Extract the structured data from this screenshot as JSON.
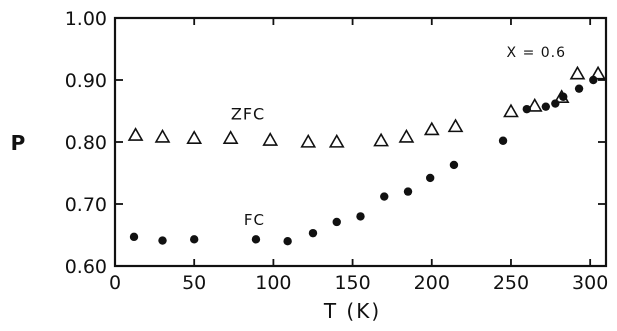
{
  "chart_data": {
    "type": "scatter",
    "title": "",
    "xlabel": "T (K)",
    "ylabel": "P",
    "xlim": [
      0,
      310
    ],
    "ylim": [
      0.6,
      1.0
    ],
    "x_ticks": [
      0,
      50,
      100,
      150,
      200,
      250,
      300
    ],
    "y_ticks": [
      0.6,
      0.7,
      0.8,
      0.9,
      1.0
    ],
    "x_tick_labels": [
      "0",
      "50",
      "100",
      "150",
      "200",
      "250",
      "300"
    ],
    "y_tick_labels": [
      "0.60",
      "0.70",
      "0.80",
      "0.90",
      "1.00"
    ],
    "grid": false,
    "annotations": [
      {
        "text": "X = 0.6",
        "x": 266,
        "y": 0.937
      },
      {
        "text": "ZFC",
        "x": 84,
        "y": 0.836
      },
      {
        "text": "FC",
        "x": 88,
        "y": 0.666
      }
    ],
    "series": [
      {
        "name": "ZFC",
        "marker": "open-triangle",
        "color": "#111111",
        "x": [
          13,
          30,
          50,
          73,
          98,
          122,
          140,
          168,
          184,
          200,
          215,
          250,
          265,
          282,
          292,
          305
        ],
        "y": [
          0.811,
          0.808,
          0.806,
          0.806,
          0.803,
          0.8,
          0.8,
          0.802,
          0.808,
          0.82,
          0.825,
          0.849,
          0.858,
          0.872,
          0.91,
          0.91
        ]
      },
      {
        "name": "FC",
        "marker": "filled-circle",
        "color": "#111111",
        "x": [
          12,
          30,
          50,
          89,
          109,
          125,
          140,
          155,
          170,
          185,
          199,
          214,
          245,
          260,
          272,
          278,
          283,
          293,
          302
        ],
        "y": [
          0.647,
          0.641,
          0.643,
          0.643,
          0.64,
          0.653,
          0.671,
          0.68,
          0.712,
          0.72,
          0.742,
          0.763,
          0.802,
          0.853,
          0.857,
          0.862,
          0.873,
          0.886,
          0.9
        ]
      }
    ]
  }
}
